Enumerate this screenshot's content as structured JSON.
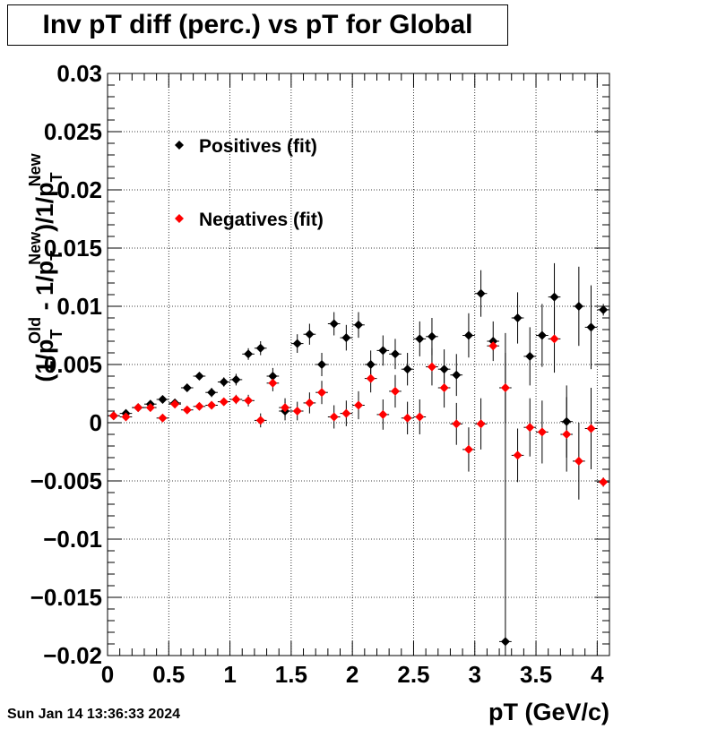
{
  "chart_data": {
    "type": "scatter",
    "title": "Inv pT diff (perc.) vs pT for Global",
    "xlabel": "pT (GeV/c)",
    "ylabel": "(1/pT Old - 1/pT New)/1/pT New",
    "xlim": [
      0,
      4.1
    ],
    "ylim": [
      -0.02,
      0.03
    ],
    "x_ticks": [
      "0",
      "0.5",
      "1",
      "1.5",
      "2",
      "2.5",
      "3",
      "3.5",
      "4"
    ],
    "y_ticks": [
      "−0.02",
      "−0.015",
      "−0.01",
      "−0.005",
      "0",
      "0.005",
      "0.01",
      "0.015",
      "0.02",
      "0.025",
      "0.03"
    ],
    "grid": true,
    "legend_placement": "top-left",
    "series": [
      {
        "name": "Positives (fit)",
        "color": "#000000",
        "x": [
          0.05,
          0.15,
          0.25,
          0.35,
          0.45,
          0.55,
          0.65,
          0.75,
          0.85,
          0.95,
          1.05,
          1.15,
          1.25,
          1.35,
          1.45,
          1.55,
          1.65,
          1.75,
          1.85,
          1.95,
          2.05,
          2.15,
          2.25,
          2.35,
          2.45,
          2.55,
          2.65,
          2.75,
          2.85,
          2.95,
          3.05,
          3.15,
          3.25,
          3.35,
          3.45,
          3.55,
          3.65,
          3.75,
          3.85,
          3.95,
          4.05
        ],
        "y": [
          0.0006,
          0.0008,
          0.0013,
          0.0016,
          0.002,
          0.0017,
          0.003,
          0.004,
          0.0026,
          0.0035,
          0.0037,
          0.0059,
          0.0064,
          0.004,
          0.001,
          0.0068,
          0.0076,
          0.005,
          0.0085,
          0.0073,
          0.0084,
          0.005,
          0.0062,
          0.0059,
          0.0046,
          0.0072,
          0.0074,
          0.0046,
          0.0041,
          0.0075,
          0.0111,
          0.007,
          -0.0188,
          0.009,
          0.0057,
          0.0075,
          0.0108,
          0.0001,
          0.01,
          0.0082,
          0.0097
        ],
        "err": [
          0.0002,
          0.0002,
          0.0002,
          0.0002,
          0.0002,
          0.0002,
          0.0002,
          0.0002,
          0.0004,
          0.0004,
          0.0005,
          0.0005,
          0.0006,
          0.0007,
          0.0008,
          0.0008,
          0.0009,
          0.001,
          0.001,
          0.0011,
          0.0011,
          0.0012,
          0.0013,
          0.0013,
          0.0014,
          0.0015,
          0.0016,
          0.0017,
          0.0018,
          0.0019,
          0.002,
          0.0017,
          0.0265,
          0.0022,
          0.0025,
          0.0027,
          0.0029,
          0.0031,
          0.0034,
          0.0036,
          0.0005
        ]
      },
      {
        "name": "Negatives (fit)",
        "color": "#ff0000",
        "x": [
          0.05,
          0.15,
          0.25,
          0.35,
          0.45,
          0.55,
          0.65,
          0.75,
          0.85,
          0.95,
          1.05,
          1.15,
          1.25,
          1.35,
          1.45,
          1.55,
          1.65,
          1.75,
          1.85,
          1.95,
          2.05,
          2.15,
          2.25,
          2.35,
          2.45,
          2.55,
          2.65,
          2.75,
          2.85,
          2.95,
          3.05,
          3.15,
          3.25,
          3.35,
          3.45,
          3.55,
          3.65,
          3.75,
          3.85,
          3.95,
          4.05
        ],
        "y": [
          0.0006,
          0.0005,
          0.0013,
          0.0013,
          0.0004,
          0.0016,
          0.0011,
          0.0014,
          0.0015,
          0.0018,
          0.002,
          0.0019,
          0.0002,
          0.0034,
          0.0013,
          0.001,
          0.0017,
          0.0026,
          0.0005,
          0.0008,
          0.0015,
          0.0038,
          0.0007,
          0.0027,
          0.0004,
          0.0005,
          0.0048,
          0.003,
          -0.0001,
          -0.0023,
          -0.0001,
          0.0066,
          0.003,
          -0.0028,
          -0.0004,
          -0.0008,
          0.0072,
          -0.001,
          -0.0033,
          -0.0005,
          -0.0051
        ],
        "err": [
          0.0002,
          0.0002,
          0.0002,
          0.0002,
          0.0002,
          0.0002,
          0.0002,
          0.0002,
          0.0003,
          0.0003,
          0.0004,
          0.0005,
          0.0006,
          0.0007,
          0.0008,
          0.0008,
          0.0009,
          0.001,
          0.001,
          0.0011,
          0.0012,
          0.0012,
          0.0013,
          0.0014,
          0.0014,
          0.0015,
          0.0016,
          0.0017,
          0.0018,
          0.0019,
          0.0022,
          0.0004,
          0.003,
          0.0023,
          0.0025,
          0.0027,
          0.0029,
          0.0032,
          0.0033,
          0.0035,
          0.0004
        ]
      }
    ]
  },
  "footer": {
    "timestamp": "Sun Jan 14 13:36:33 2024"
  }
}
